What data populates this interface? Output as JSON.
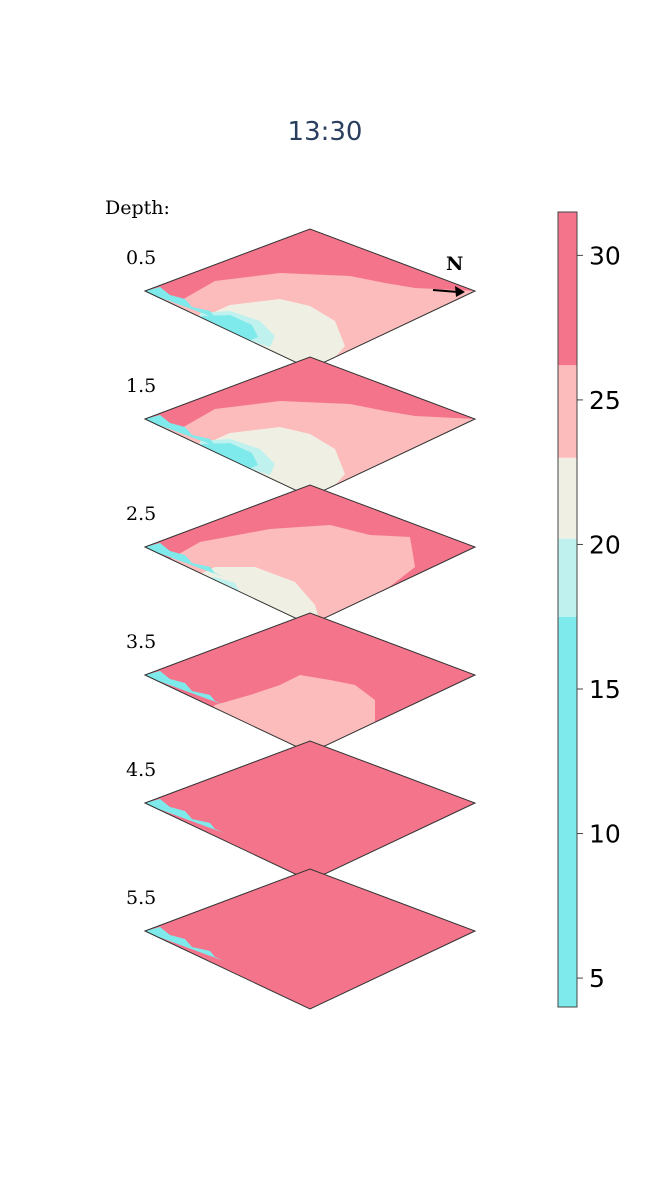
{
  "title": "13:30",
  "depth_heading": "Depth:",
  "north_label": "N",
  "chart_data": {
    "type": "heatmap",
    "title": "13:30",
    "layers": [
      {
        "depth": "0.5",
        "cold_extent": "large"
      },
      {
        "depth": "1.5",
        "cold_extent": "large"
      },
      {
        "depth": "2.5",
        "cold_extent": "medium"
      },
      {
        "depth": "3.5",
        "cold_extent": "small"
      },
      {
        "depth": "4.5",
        "cold_extent": "none"
      },
      {
        "depth": "5.5",
        "cold_extent": "none"
      }
    ],
    "colorscale": {
      "range": [
        4,
        31.5
      ],
      "ticks": [
        5,
        10,
        15,
        20,
        25,
        30
      ],
      "bands": [
        {
          "from": 4,
          "to": 17.5,
          "color": "#7feaec"
        },
        {
          "from": 17.5,
          "to": 20.2,
          "color": "#bff2ee"
        },
        {
          "from": 20.2,
          "to": 23,
          "color": "#efefe3"
        },
        {
          "from": 23,
          "to": 26.2,
          "color": "#fdbcbc"
        },
        {
          "from": 26.2,
          "to": 31.5,
          "color": "#f4758b"
        }
      ]
    }
  },
  "colors": {
    "warm": "#f4758b",
    "light_pink": "#fdbcbc",
    "neutral": "#efefe3",
    "light_cyan": "#bff2ee",
    "cyan": "#7feaec"
  }
}
